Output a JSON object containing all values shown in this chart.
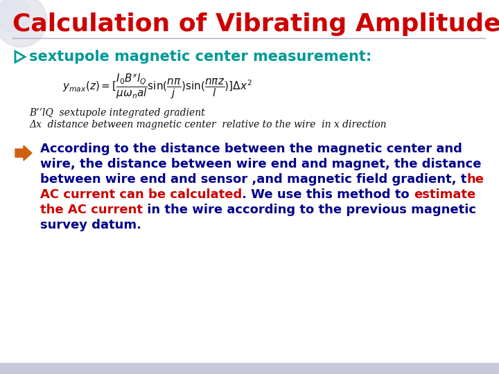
{
  "title": "Calculation of Vibrating Amplitudes",
  "title_color": "#CC0000",
  "title_fontsize": 26,
  "bg_color": "#FFFFFF",
  "footer_color": "#C8C8DC",
  "bullet1_color": "#009999",
  "bullet1_text": "sextupole magnetic center measurement:",
  "bullet1_fontsize": 15,
  "note1_text": "B’’lQ  sextupole integrated gradient",
  "note2_text": "Δx  distance between magnetic center  relative to the wire  in x direction",
  "note_color": "#111111",
  "note_fontsize": 10,
  "para_fontsize": 13,
  "arrow_color": "#D06010",
  "separator_color": "#AAAACC",
  "logo_color": "#CCCCDD",
  "para_line1": "According to the distance between the magnetic center and",
  "para_line2": "wire, the distance between wire end and magnet, the distance",
  "para_line3_b": "between wire end and sensor ,and magnetic field gradient, t",
  "para_line3_r": "he",
  "para_line4_r": "AC current can be calculated",
  "para_line4_b": ". We use this method to ",
  "para_line4_r2": "estimate",
  "para_line5_r": "the AC current",
  "para_line5_b": " in the wire according to the previous magnetic",
  "para_line6_b": "survey datum."
}
